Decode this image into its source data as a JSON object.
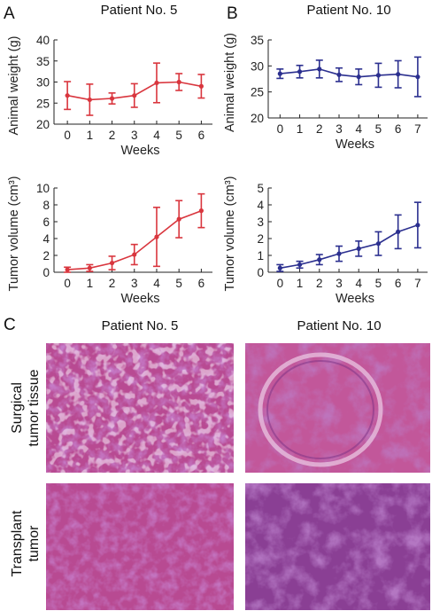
{
  "panels": {
    "A": {
      "letter": "A",
      "title": "Patient No. 5"
    },
    "B": {
      "letter": "B",
      "title": "Patient No. 10"
    },
    "C": {
      "letter": "C",
      "col_titles": [
        "Patient No. 5",
        "Patient No. 10"
      ],
      "row_labels": [
        [
          "Surgical",
          "tumor tissue"
        ],
        [
          "Transplant",
          "tumor"
        ]
      ]
    }
  },
  "tissue_colors": {
    "stain_pink": "#c2579a",
    "stain_purple": "#8a3f94",
    "background": "#b84a92"
  },
  "chart_data": [
    {
      "id": "A_weight",
      "type": "line",
      "color": "#d9363e",
      "xlabel": "Weeks",
      "ylabel": "Animal weight (g)",
      "x": [
        0,
        1,
        2,
        3,
        4,
        5,
        6
      ],
      "y": [
        26.8,
        25.8,
        26.1,
        26.8,
        29.8,
        30.0,
        29.0
      ],
      "err": [
        3.3,
        3.7,
        1.3,
        2.8,
        4.7,
        2.0,
        2.8
      ],
      "xlim": [
        -0.6,
        6.5
      ],
      "ylim": [
        20,
        40
      ],
      "yticks": [
        20,
        25,
        30,
        35,
        40
      ]
    },
    {
      "id": "B_weight",
      "type": "line",
      "color": "#2b2f8f",
      "xlabel": "Weeks",
      "ylabel": "Animal weight (g)",
      "x": [
        0,
        1,
        2,
        3,
        4,
        5,
        6,
        7
      ],
      "y": [
        28.5,
        28.9,
        29.4,
        28.3,
        27.9,
        28.2,
        28.4,
        27.9
      ],
      "err": [
        0.9,
        1.2,
        1.7,
        1.3,
        1.5,
        2.3,
        2.6,
        3.8
      ],
      "xlim": [
        -0.6,
        7.5
      ],
      "ylim": [
        20,
        35
      ],
      "yticks": [
        20,
        25,
        30,
        35
      ]
    },
    {
      "id": "A_volume",
      "type": "line",
      "color": "#d9363e",
      "xlabel": "Weeks",
      "ylabel": "Tumor volume (cm³)",
      "x": [
        0,
        1,
        2,
        3,
        4,
        5,
        6
      ],
      "y": [
        0.3,
        0.5,
        1.1,
        2.1,
        4.2,
        6.3,
        7.3
      ],
      "err": [
        0.3,
        0.4,
        0.8,
        1.2,
        3.5,
        2.2,
        2.0
      ],
      "xlim": [
        -0.6,
        6.5
      ],
      "ylim": [
        0,
        10
      ],
      "yticks": [
        0,
        2,
        4,
        6,
        8,
        10
      ]
    },
    {
      "id": "B_volume",
      "type": "line",
      "color": "#2b2f8f",
      "xlabel": "Weeks",
      "ylabel": "Tumor volume (cm³)",
      "x": [
        0,
        1,
        2,
        3,
        4,
        5,
        6,
        7
      ],
      "y": [
        0.25,
        0.45,
        0.75,
        1.1,
        1.4,
        1.7,
        2.4,
        2.8
      ],
      "err": [
        0.2,
        0.2,
        0.3,
        0.45,
        0.45,
        0.7,
        1.0,
        1.35
      ],
      "xlim": [
        -0.6,
        7.5
      ],
      "ylim": [
        0,
        5
      ],
      "yticks": [
        0,
        1,
        2,
        3,
        4,
        5
      ]
    }
  ]
}
